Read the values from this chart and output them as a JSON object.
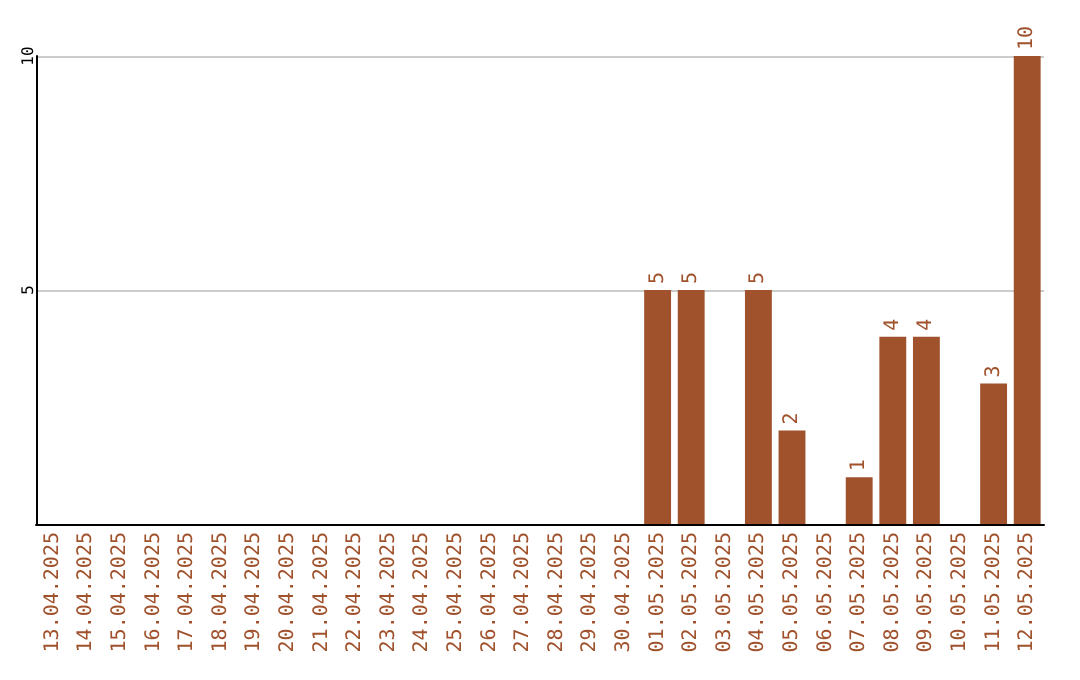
{
  "chart_data": {
    "type": "bar",
    "categories": [
      "13.04.2025",
      "14.04.2025",
      "15.04.2025",
      "16.04.2025",
      "17.04.2025",
      "18.04.2025",
      "19.04.2025",
      "20.04.2025",
      "21.04.2025",
      "22.04.2025",
      "23.04.2025",
      "24.04.2025",
      "25.04.2025",
      "26.04.2025",
      "27.04.2025",
      "28.04.2025",
      "29.04.2025",
      "30.04.2025",
      "01.05.2025",
      "02.05.2025",
      "03.05.2025",
      "04.05.2025",
      "05.05.2025",
      "06.05.2025",
      "07.05.2025",
      "08.05.2025",
      "09.05.2025",
      "10.05.2025",
      "11.05.2025",
      "12.05.2025"
    ],
    "values": [
      0,
      0,
      0,
      0,
      0,
      0,
      0,
      0,
      0,
      0,
      0,
      0,
      0,
      0,
      0,
      0,
      0,
      0,
      5,
      5,
      0,
      5,
      2,
      0,
      1,
      4,
      4,
      0,
      3,
      10
    ],
    "value_labels": [
      null,
      null,
      null,
      null,
      null,
      null,
      null,
      null,
      null,
      null,
      null,
      null,
      null,
      null,
      null,
      null,
      null,
      null,
      "5",
      "5",
      null,
      "5",
      "2",
      null,
      "1",
      "4",
      "4",
      null,
      "3",
      "10"
    ],
    "color": "#a0522d",
    "ylim": [
      0,
      10
    ],
    "yticks": [
      {
        "value": 0,
        "label": null
      },
      5,
      10
    ],
    "grid": "y"
  }
}
